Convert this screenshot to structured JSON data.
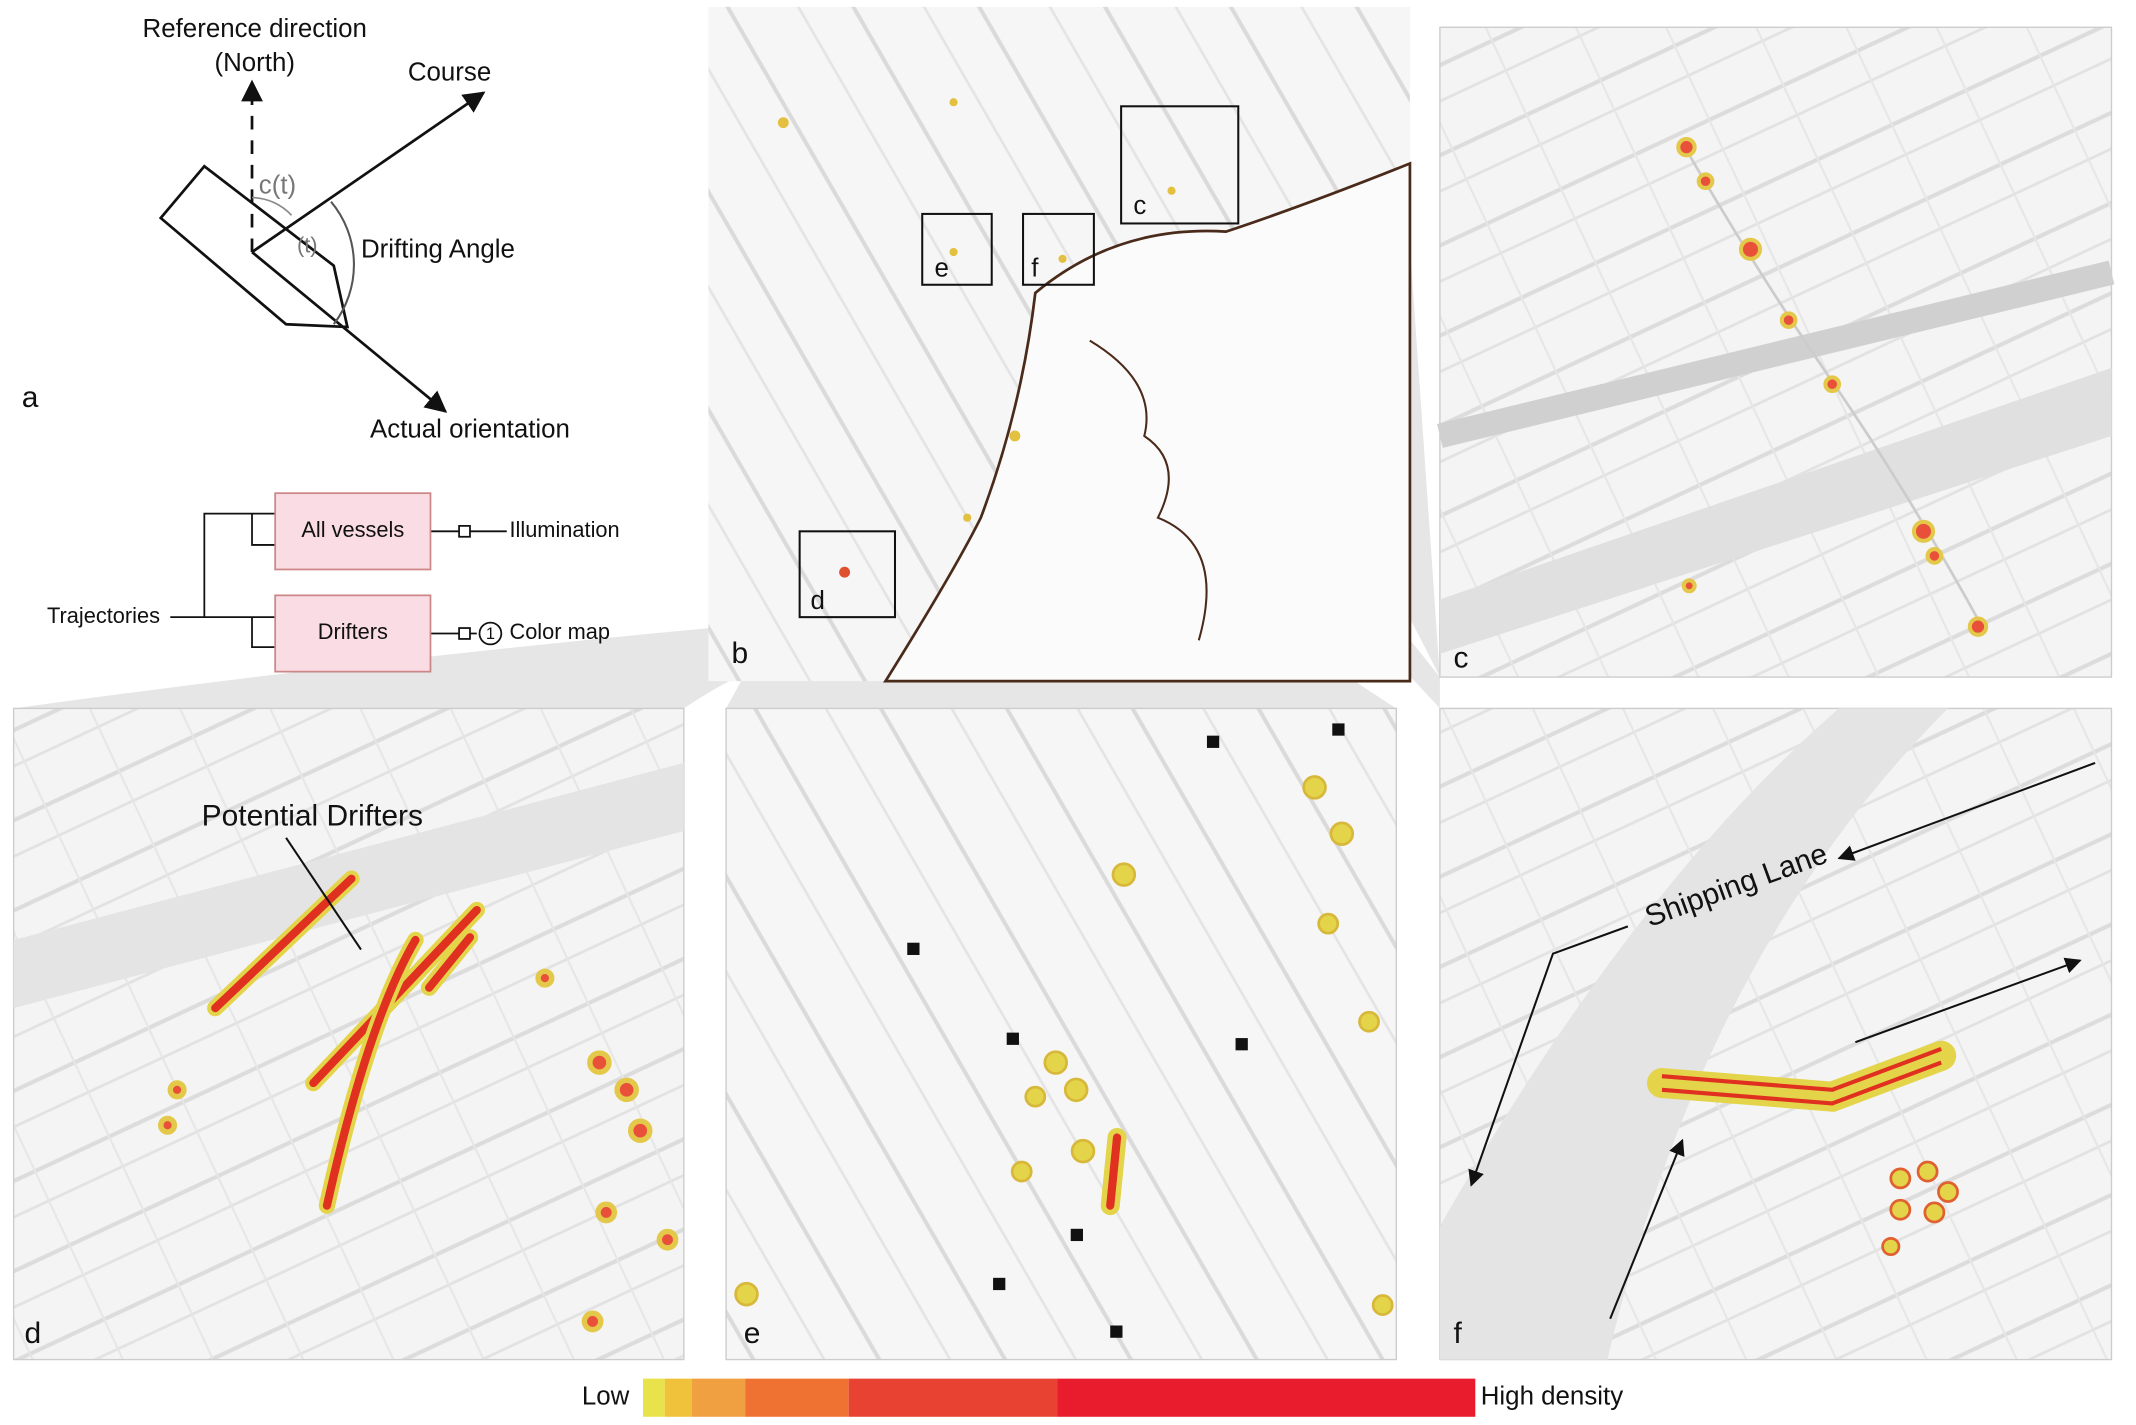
{
  "panel_a": {
    "label": "a",
    "reference_direction": "Reference direction",
    "reference_note": "(North)",
    "course": "Course",
    "course_angle": "c(t)",
    "orientation_angle": "(t)",
    "drifting_angle": "Drifting Angle",
    "actual_orientation": "Actual orientation"
  },
  "pipeline": {
    "input": "Trajectories",
    "nodes": [
      {
        "label": "All vessels",
        "output": "Illumination"
      },
      {
        "label": "Drifters",
        "step": "1",
        "output": "Color map"
      }
    ]
  },
  "panel_b": {
    "label": "b",
    "boxes": [
      "c",
      "e",
      "f",
      "d"
    ]
  },
  "panels": [
    {
      "label": "c"
    },
    {
      "label": "d",
      "annotation": "Potential Drifters"
    },
    {
      "label": "e"
    },
    {
      "label": "f",
      "annotation": "Shipping Lane"
    }
  ],
  "legend": {
    "low": "Low",
    "high": "High density",
    "colors": [
      "#e8e34a",
      "#f0c23c",
      "#f0a040",
      "#f07232",
      "#e84232",
      "#e81c2c"
    ]
  }
}
